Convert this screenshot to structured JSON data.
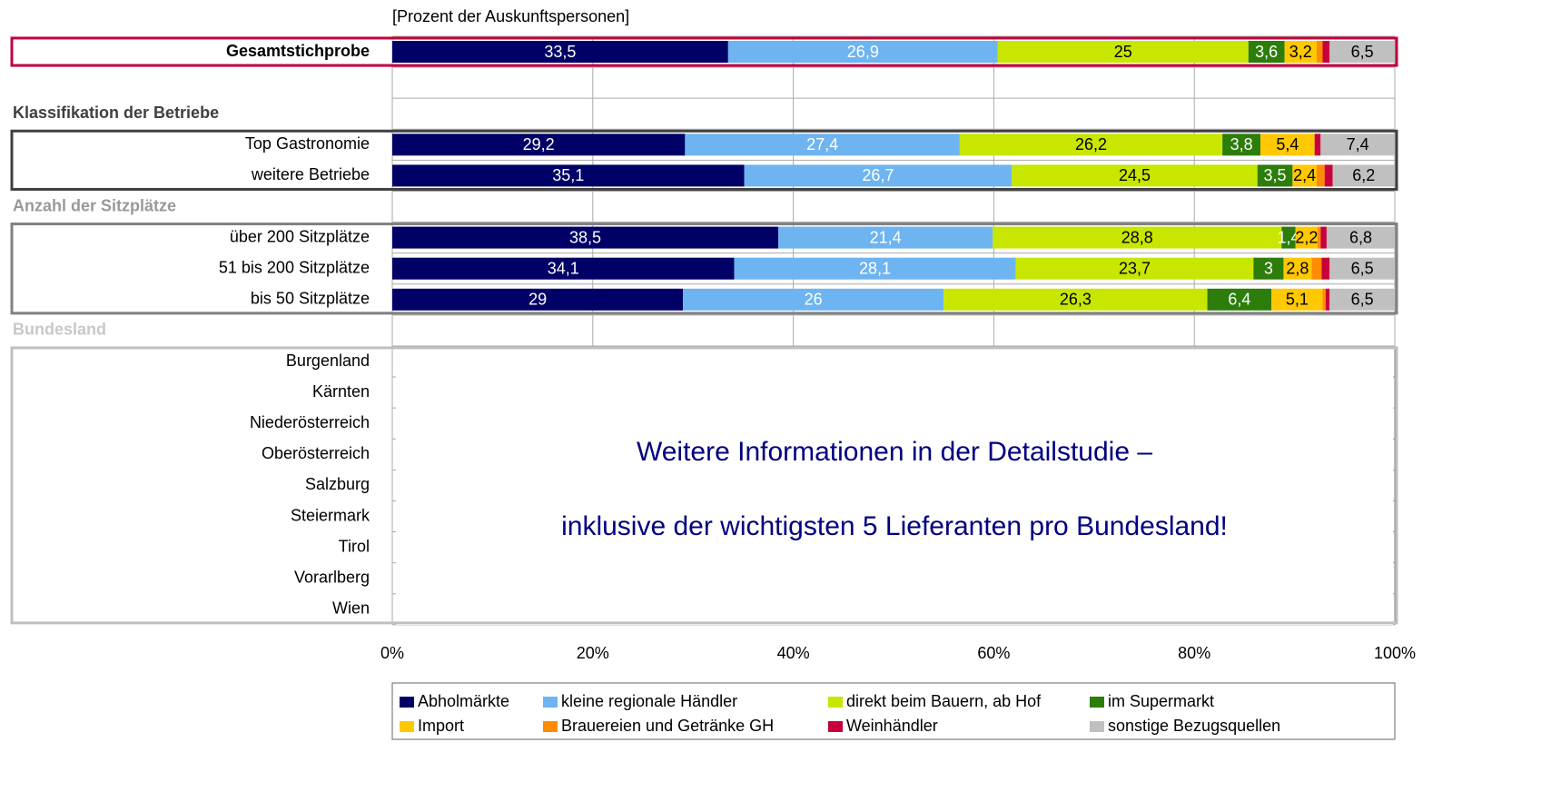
{
  "chart_data": {
    "type": "stacked-barh",
    "subtitle": "[Prozent der Auskunftspersonen]",
    "annotations": [
      "Weitere Informationen in der Detailstudie –",
      "inklusive der wichtigsten 5 Lieferanten pro Bundesland!"
    ],
    "categories": [
      "Gesamtstichprobe",
      null,
      "Klassifikation der Betriebe",
      "Top Gastronomie",
      "weitere Betriebe",
      "Anzahl der Sitzplätze",
      "über 200 Sitzplätze",
      "51 bis 200 Sitzplätze",
      "bis 50 Sitzplätze",
      "Bundesland",
      "Burgenland",
      "Kärnten",
      "Niederösterreich",
      "Oberösterreich",
      "Salzburg",
      "Steiermark",
      "Tirol",
      "Vorarlberg",
      "Wien"
    ],
    "series": [
      {
        "name": "Abholmärkte",
        "color": "#000066",
        "label_color": "#ffffff",
        "values": [
          33.5,
          null,
          null,
          29.2,
          35.1,
          null,
          38.5,
          34.1,
          29,
          null,
          null,
          null,
          null,
          null,
          null,
          null,
          null,
          null,
          null
        ],
        "value_labels": [
          "33,5",
          null,
          null,
          "29,2",
          "35,1",
          null,
          "38,5",
          "34,1",
          "29",
          null,
          null,
          null,
          null,
          null,
          null,
          null,
          null,
          null,
          null
        ]
      },
      {
        "name": "kleine regionale Händler",
        "color": "#6eb4f0",
        "label_color": "#ffffff",
        "values": [
          26.9,
          null,
          null,
          27.4,
          26.7,
          null,
          21.4,
          28.1,
          26,
          null,
          null,
          null,
          null,
          null,
          null,
          null,
          null,
          null,
          null
        ],
        "value_labels": [
          "26,9",
          null,
          null,
          "27,4",
          "26,7",
          null,
          "21,4",
          "28,1",
          "26",
          null,
          null,
          null,
          null,
          null,
          null,
          null,
          null,
          null,
          null
        ]
      },
      {
        "name": "direkt beim Bauern, ab Hof",
        "color": "#c8e600",
        "label_color": "#000000",
        "values": [
          25,
          null,
          null,
          26.2,
          24.5,
          null,
          28.8,
          23.7,
          26.3,
          null,
          null,
          null,
          null,
          null,
          null,
          null,
          null,
          null,
          null
        ],
        "value_labels": [
          "25",
          null,
          null,
          "26,2",
          "24,5",
          null,
          "28,8",
          "23,7",
          "26,3",
          null,
          null,
          null,
          null,
          null,
          null,
          null,
          null,
          null,
          null
        ]
      },
      {
        "name": "im Supermarkt",
        "color": "#2d7d0a",
        "label_color": "#ffffff",
        "values": [
          3.6,
          null,
          null,
          3.8,
          3.5,
          null,
          1.4,
          3,
          6.4,
          null,
          null,
          null,
          null,
          null,
          null,
          null,
          null,
          null,
          null
        ],
        "value_labels": [
          "3,6",
          null,
          null,
          "3,8",
          "3,5",
          null,
          "1,4",
          "3",
          "6,4",
          null,
          null,
          null,
          null,
          null,
          null,
          null,
          null,
          null,
          null
        ]
      },
      {
        "name": "Import",
        "color": "#ffc800",
        "label_color": "#000000",
        "values": [
          3.2,
          null,
          null,
          5.4,
          2.4,
          null,
          2.2,
          2.8,
          5.1,
          null,
          null,
          null,
          null,
          null,
          null,
          null,
          null,
          null,
          null
        ],
        "value_labels": [
          "3,2",
          null,
          null,
          "5,4",
          "2,4",
          null,
          "2,2",
          "2,8",
          "5,1",
          null,
          null,
          null,
          null,
          null,
          null,
          null,
          null,
          null,
          null
        ]
      },
      {
        "name": "Brauereien und Getränke GH",
        "color": "#ff8c00",
        "label_color": "#000000",
        "values": [
          0.6,
          null,
          null,
          0,
          0.8,
          null,
          0.3,
          1.0,
          0.3,
          null,
          null,
          null,
          null,
          null,
          null,
          null,
          null,
          null,
          null
        ]
      },
      {
        "name": "Weinhändler",
        "color": "#c8003c",
        "label_color": "#ffffff",
        "values": [
          0.7,
          null,
          null,
          0.6,
          0.8,
          null,
          0.6,
          0.8,
          0.4,
          null,
          null,
          null,
          null,
          null,
          null,
          null,
          null,
          null,
          null
        ]
      },
      {
        "name": "sonstige Bezugsquellen",
        "color": "#c0c0c0",
        "label_color": "#000000",
        "values": [
          6.5,
          null,
          null,
          7.4,
          6.2,
          null,
          6.8,
          6.5,
          6.5,
          null,
          null,
          null,
          null,
          null,
          null,
          null,
          null,
          null,
          null
        ],
        "value_labels": [
          "6,5",
          null,
          null,
          "7,4",
          "6,2",
          null,
          "6,8",
          "6,5",
          "6,5",
          null,
          null,
          null,
          null,
          null,
          null,
          null,
          null,
          null,
          null
        ]
      }
    ],
    "xlim": [
      0,
      100
    ],
    "xticks": [
      {
        "value": 0,
        "label": "0%"
      },
      {
        "value": 20,
        "label": "20%"
      },
      {
        "value": 40,
        "label": "40%"
      },
      {
        "value": 60,
        "label": "60%"
      },
      {
        "value": 80,
        "label": "80%"
      },
      {
        "value": 100,
        "label": "100%"
      }
    ],
    "grid": true,
    "legend": "bottom"
  }
}
